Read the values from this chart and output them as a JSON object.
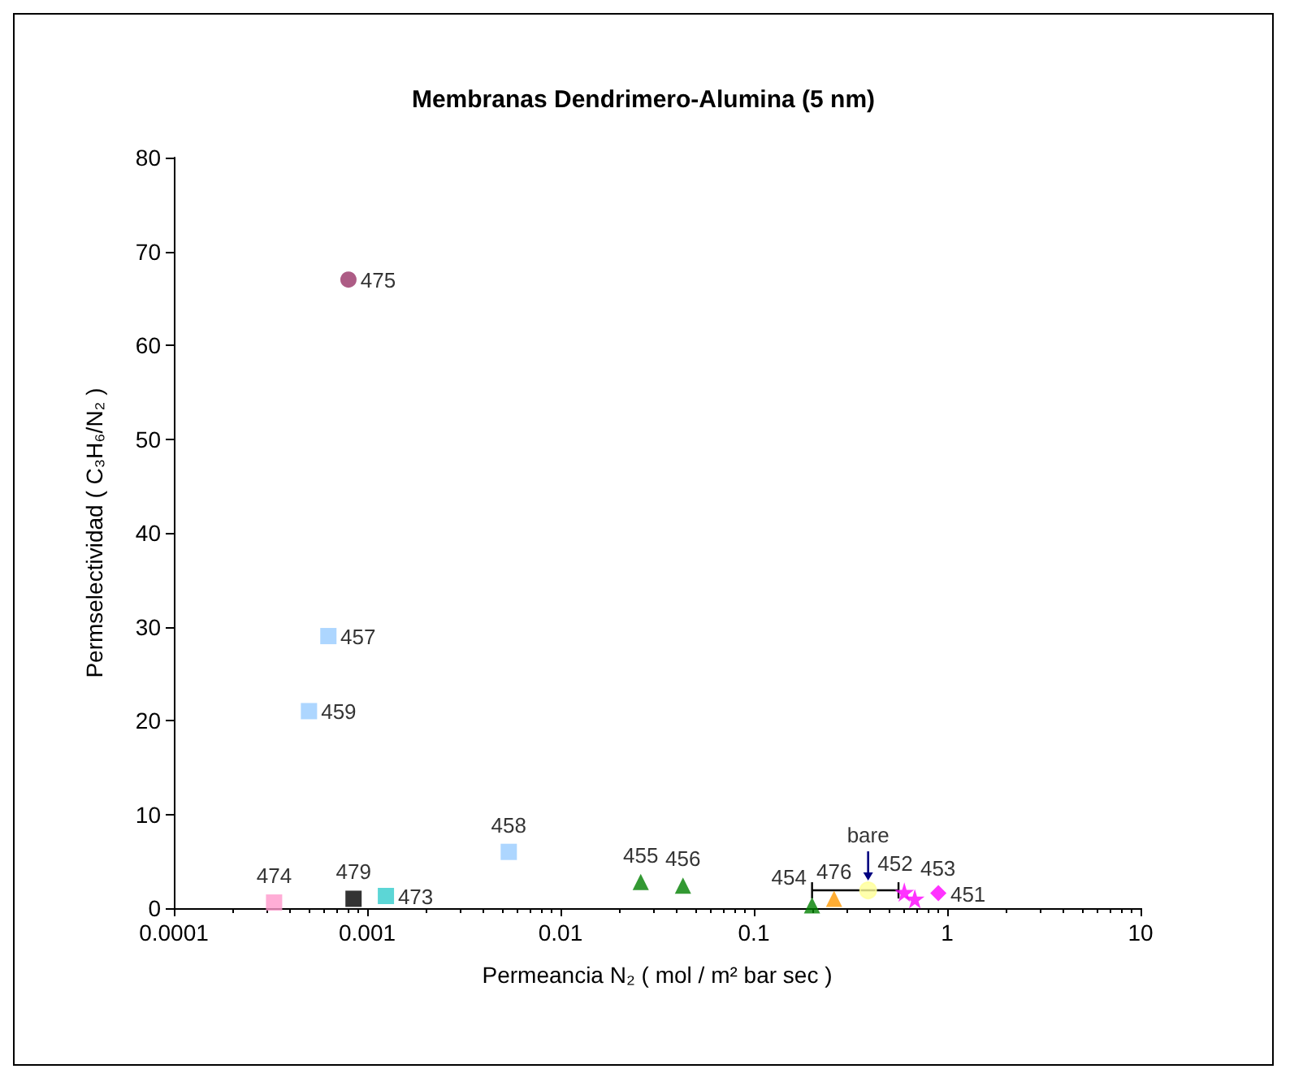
{
  "chart_data": {
    "type": "scatter",
    "title": "Membranas Dendrimero-Alumina (5 nm)",
    "xlabel": "Permeancia N₂ ( mol / m² bar sec )",
    "ylabel": "Permselectividad ( C₃H₆/N₂ )",
    "log": "x",
    "xlim": [
      0.0001,
      10
    ],
    "xticks": [
      0.0001,
      0.001,
      0.01,
      0.1,
      1,
      10
    ],
    "ylim": [
      0,
      80
    ],
    "yticks": [
      0,
      10,
      20,
      30,
      40,
      50,
      60,
      70,
      80
    ],
    "grid": false,
    "legend": false,
    "series": [
      {
        "name": "475",
        "color": "#993366",
        "marker": "circle",
        "x": [
          0.0008
        ],
        "values": [
          67
        ]
      },
      {
        "name": "457",
        "color": "#99ccff",
        "marker": "square",
        "x": [
          0.00063
        ],
        "values": [
          29
        ]
      },
      {
        "name": "459",
        "color": "#99ccff",
        "marker": "square",
        "x": [
          0.0005
        ],
        "values": [
          21
        ]
      },
      {
        "name": "458",
        "color": "#99ccff",
        "marker": "square",
        "x": [
          0.0054
        ],
        "values": [
          6
        ]
      },
      {
        "name": "474",
        "color": "#ff99cc",
        "marker": "square",
        "x": [
          0.00033
        ],
        "values": [
          0.6
        ]
      },
      {
        "name": "479",
        "color": "#000000",
        "marker": "square",
        "x": [
          0.00085
        ],
        "values": [
          1
        ]
      },
      {
        "name": "473",
        "color": "#33cccc",
        "marker": "square",
        "x": [
          0.00125
        ],
        "values": [
          1.3
        ]
      },
      {
        "name": "455",
        "color": "#008000",
        "marker": "triangle",
        "x": [
          0.026
        ],
        "values": [
          2.8
        ]
      },
      {
        "name": "456",
        "color": "#008000",
        "marker": "triangle",
        "x": [
          0.043
        ],
        "values": [
          2.4
        ]
      },
      {
        "name": "454",
        "color": "#008000",
        "marker": "triangle",
        "x": [
          0.2
        ],
        "values": [
          0.3
        ]
      },
      {
        "name": "476",
        "color": "#ff9900",
        "marker": "triangle",
        "x": [
          0.26
        ],
        "values": [
          1
        ]
      },
      {
        "name": "bare",
        "color": "#ffff99",
        "marker": "circle",
        "x": [
          0.39
        ],
        "values": [
          1.9
        ],
        "xerrors": [
          [
            0.2,
            0.56
          ]
        ]
      },
      {
        "name": "452",
        "color": "#ff00ff",
        "marker": "star",
        "x": [
          0.6
        ],
        "values": [
          1.7
        ]
      },
      {
        "name": "453",
        "color": "#ff00ff",
        "marker": "star",
        "x": [
          0.68
        ],
        "values": [
          1
        ]
      },
      {
        "name": "451",
        "color": "#ff00ff",
        "marker": "diamond",
        "x": [
          0.9
        ],
        "values": [
          1.6
        ]
      }
    ]
  }
}
